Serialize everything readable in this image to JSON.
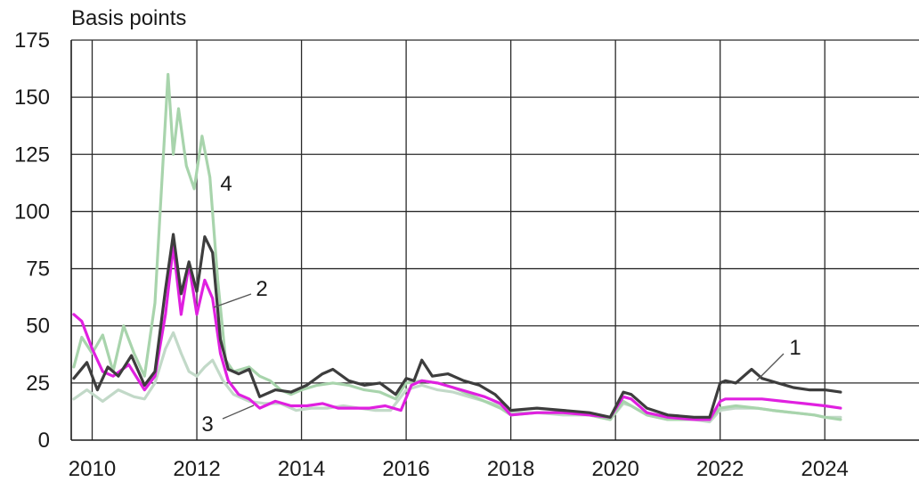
{
  "chart_data": {
    "type": "line",
    "ylabel": "Basis points",
    "ylim": [
      0,
      175
    ],
    "yticks": [
      0,
      25,
      50,
      75,
      100,
      125,
      150,
      175
    ],
    "xlim": [
      2009.6,
      2025.8
    ],
    "xticks": [
      2010,
      2012,
      2014,
      2016,
      2018,
      2020,
      2022,
      2024
    ],
    "grid": true,
    "series": [
      {
        "label": "1",
        "color": "#3d3d3d",
        "x": [
          2009.65,
          2009.9,
          2010.1,
          2010.3,
          2010.5,
          2010.75,
          2011.0,
          2011.2,
          2011.4,
          2011.55,
          2011.7,
          2011.85,
          2012.0,
          2012.15,
          2012.3,
          2012.45,
          2012.6,
          2012.8,
          2013.0,
          2013.2,
          2013.5,
          2013.8,
          2014.1,
          2014.4,
          2014.6,
          2014.9,
          2015.2,
          2015.5,
          2015.8,
          2016.0,
          2016.15,
          2016.3,
          2016.5,
          2016.8,
          2017.1,
          2017.4,
          2017.7,
          2018.0,
          2018.5,
          2019.0,
          2019.5,
          2019.9,
          2020.15,
          2020.3,
          2020.6,
          2021.0,
          2021.5,
          2021.8,
          2022.0,
          2022.1,
          2022.3,
          2022.6,
          2022.8,
          2023.1,
          2023.4,
          2023.7,
          2024.0,
          2024.3
        ],
        "y": [
          27,
          34,
          22,
          32,
          28,
          37,
          24,
          30,
          66,
          90,
          64,
          78,
          65,
          89,
          82,
          44,
          31,
          29,
          31,
          19,
          22,
          21,
          24,
          29,
          31,
          26,
          24,
          25,
          20,
          27,
          26,
          35,
          28,
          29,
          26,
          24,
          20,
          13,
          14,
          13,
          12,
          10,
          21,
          20,
          14,
          11,
          10,
          10,
          25,
          26,
          25,
          31,
          27,
          25,
          23,
          22,
          22,
          21
        ]
      },
      {
        "label": "2",
        "color": "#e020e0",
        "x": [
          2009.65,
          2009.8,
          2010.0,
          2010.2,
          2010.4,
          2010.7,
          2011.0,
          2011.2,
          2011.4,
          2011.55,
          2011.7,
          2011.85,
          2012.0,
          2012.15,
          2012.3,
          2012.45,
          2012.6,
          2012.8,
          2013.0,
          2013.2,
          2013.5,
          2013.8,
          2014.1,
          2014.4,
          2014.7,
          2015.0,
          2015.3,
          2015.6,
          2015.9,
          2016.1,
          2016.3,
          2016.6,
          2016.9,
          2017.2,
          2017.5,
          2017.8,
          2018.0,
          2018.5,
          2019.0,
          2019.5,
          2019.9,
          2020.15,
          2020.3,
          2020.6,
          2021.0,
          2021.5,
          2021.8,
          2022.0,
          2022.1,
          2022.4,
          2022.8,
          2023.2,
          2023.6,
          2024.0,
          2024.3
        ],
        "y": [
          55,
          52,
          40,
          30,
          28,
          33,
          22,
          28,
          55,
          85,
          55,
          77,
          55,
          70,
          62,
          38,
          26,
          20,
          18,
          14,
          17,
          15,
          15,
          16,
          14,
          14,
          14,
          15,
          13,
          24,
          26,
          25,
          23,
          21,
          19,
          16,
          11,
          12,
          12,
          11,
          10,
          19,
          18,
          12,
          10,
          9,
          9,
          17,
          18,
          18,
          18,
          17,
          16,
          15,
          14
        ]
      },
      {
        "label": "3",
        "color": "#c2d9c8",
        "x": [
          2009.65,
          2009.9,
          2010.2,
          2010.5,
          2010.8,
          2011.0,
          2011.2,
          2011.4,
          2011.55,
          2011.7,
          2011.85,
          2012.0,
          2012.15,
          2012.3,
          2012.5,
          2012.7,
          2013.0,
          2013.3,
          2013.6,
          2013.9,
          2014.2,
          2014.5,
          2014.8,
          2015.1,
          2015.4,
          2015.7,
          2016.0,
          2016.3,
          2016.6,
          2016.9,
          2017.2,
          2017.5,
          2017.8,
          2018.0,
          2018.5,
          2019.0,
          2019.5,
          2019.9,
          2020.15,
          2020.3,
          2020.6,
          2021.0,
          2021.5,
          2021.8,
          2022.0,
          2022.3,
          2022.7,
          2023.0,
          2023.4,
          2023.8,
          2024.0,
          2024.3
        ],
        "y": [
          18,
          22,
          17,
          22,
          19,
          18,
          25,
          40,
          47,
          38,
          30,
          28,
          32,
          35,
          26,
          20,
          17,
          16,
          16,
          13,
          14,
          14,
          15,
          14,
          13,
          13,
          22,
          24,
          22,
          21,
          19,
          17,
          15,
          12,
          12,
          11,
          11,
          9,
          16,
          15,
          11,
          9,
          9,
          8,
          13,
          14,
          14,
          13,
          12,
          11,
          10,
          10
        ]
      },
      {
        "label": "4",
        "color": "#a8d4ac",
        "x": [
          2009.65,
          2009.8,
          2010.0,
          2010.2,
          2010.4,
          2010.6,
          2010.8,
          2011.0,
          2011.2,
          2011.35,
          2011.45,
          2011.55,
          2011.65,
          2011.8,
          2011.95,
          2012.1,
          2012.25,
          2012.4,
          2012.55,
          2012.7,
          2012.85,
          2013.0,
          2013.2,
          2013.4,
          2013.6,
          2013.8,
          2014.0,
          2014.3,
          2014.6,
          2014.9,
          2015.2,
          2015.5,
          2015.8,
          2016.0,
          2016.3,
          2016.6,
          2016.9,
          2017.2,
          2017.5,
          2017.8,
          2018.0,
          2018.5,
          2019.0,
          2019.5,
          2019.9,
          2020.15,
          2020.3,
          2020.6,
          2021.0,
          2021.5,
          2021.8,
          2022.0,
          2022.3,
          2022.7,
          2023.0,
          2023.4,
          2023.8,
          2024.0,
          2024.3
        ],
        "y": [
          32,
          45,
          38,
          46,
          30,
          50,
          38,
          28,
          60,
          120,
          160,
          125,
          145,
          120,
          110,
          133,
          115,
          70,
          35,
          30,
          31,
          32,
          28,
          26,
          22,
          20,
          22,
          24,
          25,
          24,
          22,
          21,
          18,
          25,
          26,
          25,
          23,
          20,
          17,
          14,
          11,
          12,
          12,
          11,
          9,
          17,
          15,
          11,
          9,
          9,
          9,
          14,
          15,
          14,
          13,
          12,
          11,
          10,
          9
        ]
      }
    ],
    "annotations": [
      {
        "text": "1",
        "series": "1"
      },
      {
        "text": "2",
        "series": "2"
      },
      {
        "text": "3",
        "series": "3"
      },
      {
        "text": "4",
        "series": "4"
      }
    ]
  }
}
